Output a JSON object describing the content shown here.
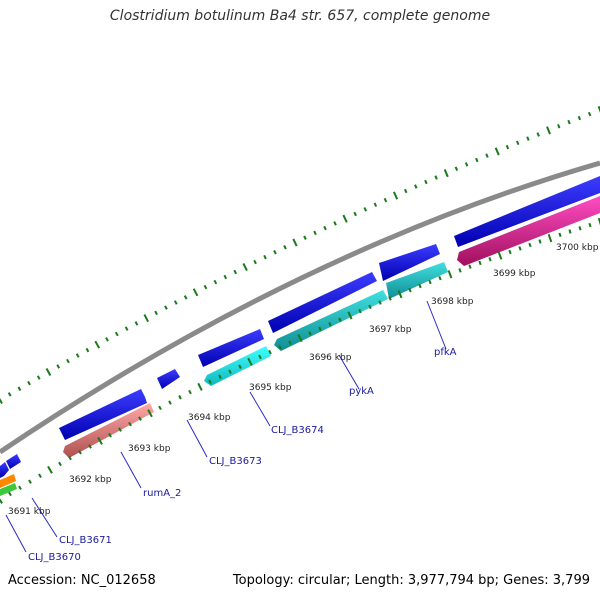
{
  "title": "Clostridium botulinum Ba4 str. 657, complete genome",
  "footer": {
    "accession": "Accession: NC_012658",
    "topology": "Topology: circular; Length: 3,977,794 bp; Genes: 3,799"
  },
  "colors": {
    "backbone": "#8a8a8a",
    "cds_blue": "#1010e8",
    "cyan": "#20e0e0",
    "teal": "#20c8c8",
    "salmon": "#f08888",
    "magenta": "#ff1aa8",
    "orange": "#ff8800",
    "green": "#3cc83c",
    "ticks": "#1a7a1a",
    "labels": "#1a1aa0"
  },
  "kbp_labels": [
    "3691 kbp",
    "3692 kbp",
    "3693 kbp",
    "3694 kbp",
    "3695 kbp",
    "3696 kbp",
    "3697 kbp",
    "3698 kbp",
    "3699 kbp",
    "3700 kbp"
  ],
  "gene_labels": [
    "CLJ_B3670",
    "CLJ_B3671",
    "rumA_2",
    "CLJ_B3673",
    "CLJ_B3674",
    "pykA",
    "pfkA"
  ]
}
